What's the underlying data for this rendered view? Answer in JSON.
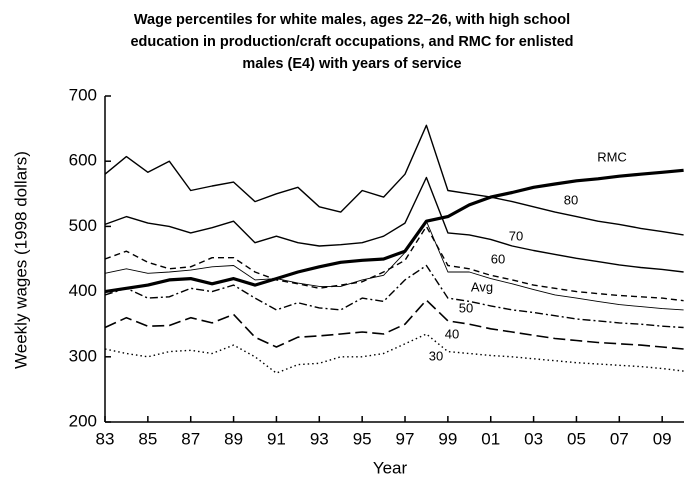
{
  "chart_data": {
    "type": "line",
    "title_lines": [
      "Wage percentiles for white males, ages 22–26, with high school",
      "education in production/craft occupations, and RMC for enlisted",
      "males (E4) with years of service"
    ],
    "x_label": "Year",
    "y_label": "Weekly wages (1998 dollars)",
    "x": [
      1983,
      1984,
      1985,
      1986,
      1987,
      1988,
      1989,
      1990,
      1991,
      1992,
      1993,
      1994,
      1995,
      1996,
      1997,
      1998,
      1999,
      2000,
      2001,
      2002,
      2003,
      2004,
      2005,
      2006,
      2007,
      2008,
      2009,
      2010
    ],
    "xlim": [
      1983,
      2010
    ],
    "xticks": [
      {
        "value": 1983,
        "label": "83"
      },
      {
        "value": 1985,
        "label": "85"
      },
      {
        "value": 1987,
        "label": "87"
      },
      {
        "value": 1989,
        "label": "89"
      },
      {
        "value": 1991,
        "label": "91"
      },
      {
        "value": 1993,
        "label": "93"
      },
      {
        "value": 1995,
        "label": "95"
      },
      {
        "value": 1997,
        "label": "97"
      },
      {
        "value": 1999,
        "label": "99"
      },
      {
        "value": 2001,
        "label": "01"
      },
      {
        "value": 2003,
        "label": "03"
      },
      {
        "value": 2005,
        "label": "05"
      },
      {
        "value": 2007,
        "label": "07"
      },
      {
        "value": 2009,
        "label": "09"
      }
    ],
    "ylim": [
      200,
      700
    ],
    "yticks": [
      200,
      300,
      400,
      500,
      600,
      700
    ],
    "series": [
      {
        "name": "80",
        "color": "#000",
        "line_style": "solid",
        "values": [
          580,
          607,
          583,
          600,
          555,
          562,
          568,
          538,
          550,
          560,
          530,
          522,
          555,
          545,
          580,
          655,
          555,
          550,
          545,
          538,
          530,
          522,
          515,
          508,
          503,
          497,
          492,
          487
        ]
      },
      {
        "name": "70",
        "color": "#000",
        "line_style": "solid",
        "values": [
          503,
          515,
          505,
          500,
          490,
          498,
          508,
          475,
          485,
          475,
          470,
          472,
          475,
          485,
          505,
          575,
          490,
          487,
          480,
          470,
          463,
          457,
          451,
          446,
          441,
          437,
          434,
          430
        ]
      },
      {
        "name": "60",
        "color": "#000",
        "line_style": "dashed",
        "values": [
          450,
          462,
          445,
          435,
          438,
          452,
          452,
          430,
          418,
          412,
          405,
          410,
          415,
          430,
          448,
          500,
          440,
          435,
          425,
          418,
          410,
          405,
          400,
          397,
          394,
          392,
          390,
          386
        ]
      },
      {
        "name": "Avg",
        "color": "#000",
        "line_style": "thin",
        "values": [
          428,
          435,
          428,
          430,
          433,
          438,
          440,
          418,
          420,
          413,
          408,
          408,
          418,
          425,
          460,
          508,
          430,
          430,
          420,
          412,
          403,
          395,
          390,
          385,
          380,
          377,
          374,
          372
        ]
      },
      {
        "name": "50",
        "color": "#000",
        "line_style": "dashdot",
        "values": [
          395,
          405,
          390,
          392,
          405,
          400,
          410,
          390,
          372,
          383,
          375,
          372,
          390,
          385,
          418,
          440,
          390,
          385,
          378,
          372,
          368,
          363,
          358,
          355,
          352,
          350,
          347,
          345
        ]
      },
      {
        "name": "40",
        "color": "#000",
        "line_style": "longdash",
        "values": [
          345,
          360,
          347,
          348,
          360,
          352,
          365,
          330,
          315,
          330,
          332,
          335,
          338,
          335,
          350,
          387,
          355,
          350,
          343,
          338,
          333,
          328,
          325,
          322,
          320,
          318,
          315,
          312
        ]
      },
      {
        "name": "30",
        "color": "#000",
        "line_style": "dotted",
        "values": [
          312,
          305,
          300,
          308,
          310,
          305,
          318,
          300,
          275,
          288,
          290,
          300,
          300,
          305,
          320,
          335,
          308,
          305,
          302,
          300,
          297,
          294,
          291,
          289,
          287,
          285,
          282,
          278
        ]
      },
      {
        "name": "RMC",
        "color": "#000",
        "line_style": "thick",
        "values": [
          400,
          405,
          410,
          418,
          420,
          412,
          420,
          410,
          420,
          430,
          438,
          445,
          448,
          450,
          462,
          508,
          515,
          533,
          545,
          552,
          560,
          565,
          570,
          573,
          577,
          580,
          583,
          586
        ]
      }
    ]
  }
}
